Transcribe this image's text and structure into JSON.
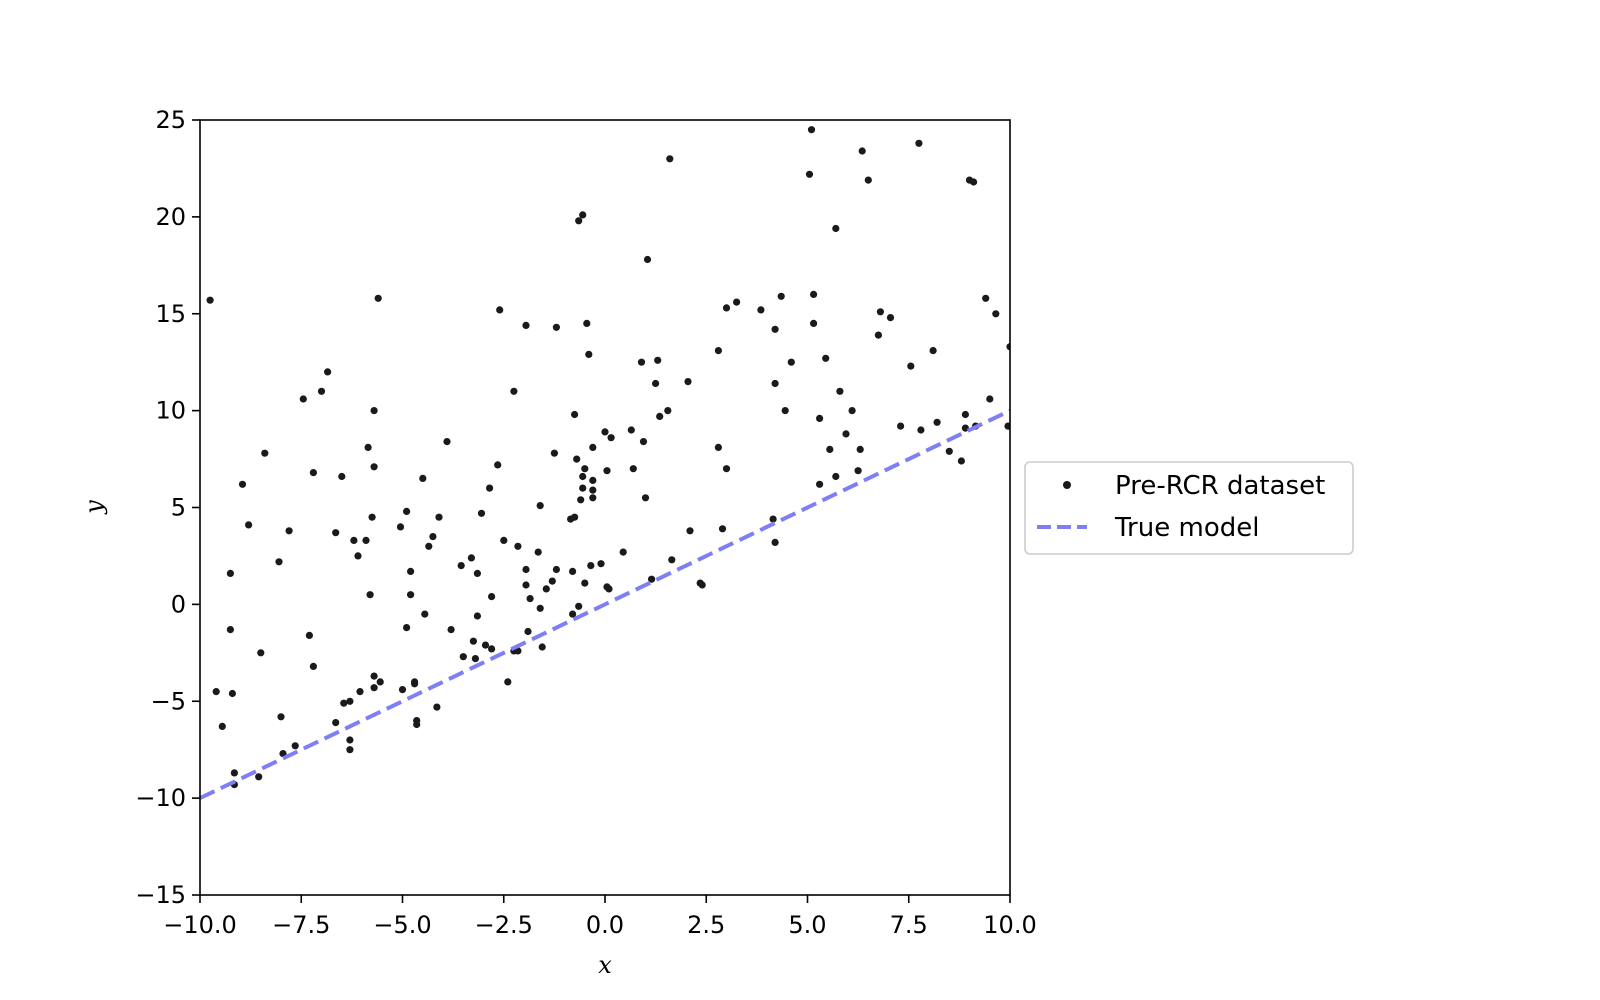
{
  "chart_data": {
    "type": "scatter",
    "xlabel": "x",
    "ylabel": "y",
    "xlim": [
      -10.0,
      10.0
    ],
    "ylim": [
      -15,
      25
    ],
    "xticks": [
      "−10.0",
      "−7.5",
      "−5.0",
      "−2.5",
      "0.0",
      "2.5",
      "5.0",
      "7.5",
      "10.0"
    ],
    "yticks": [
      "−15",
      "−10",
      "−5",
      "0",
      "5",
      "10",
      "15",
      "20",
      "25"
    ],
    "grid": false,
    "legend_placement": "outside-right",
    "colors": {
      "points": "#1a1a1a",
      "model_line": "#7f7ff5"
    },
    "series": [
      {
        "name": "Pre-RCR dataset",
        "kind": "scatter",
        "points": [
          [
            -9.75,
            15.7
          ],
          [
            -9.6,
            -4.5
          ],
          [
            -9.45,
            -6.3
          ],
          [
            -9.25,
            1.6
          ],
          [
            -9.25,
            -1.3
          ],
          [
            -9.2,
            -4.6
          ],
          [
            -9.15,
            -8.7
          ],
          [
            -9.15,
            -9.3
          ],
          [
            -8.95,
            6.2
          ],
          [
            -8.8,
            4.1
          ],
          [
            -8.55,
            -8.9
          ],
          [
            -8.5,
            -2.5
          ],
          [
            -8.4,
            7.8
          ],
          [
            -8.05,
            2.2
          ],
          [
            -8.0,
            -5.8
          ],
          [
            -7.95,
            -7.7
          ],
          [
            -7.8,
            3.8
          ],
          [
            -7.65,
            -7.3
          ],
          [
            -7.45,
            10.6
          ],
          [
            -7.3,
            -1.6
          ],
          [
            -7.2,
            6.8
          ],
          [
            -7.2,
            -3.2
          ],
          [
            -7.0,
            11.0
          ],
          [
            -6.85,
            12.0
          ],
          [
            -6.65,
            3.7
          ],
          [
            -6.5,
            6.6
          ],
          [
            -6.45,
            -5.1
          ],
          [
            -6.65,
            -6.1
          ],
          [
            -6.3,
            -5.0
          ],
          [
            -6.3,
            -7.0
          ],
          [
            -6.3,
            -7.5
          ],
          [
            -6.2,
            3.3
          ],
          [
            -6.1,
            2.5
          ],
          [
            -6.05,
            -4.5
          ],
          [
            -5.9,
            3.3
          ],
          [
            -5.85,
            8.1
          ],
          [
            -5.8,
            0.5
          ],
          [
            -5.75,
            4.5
          ],
          [
            -5.7,
            10.0
          ],
          [
            -5.7,
            7.1
          ],
          [
            -5.7,
            -3.7
          ],
          [
            -5.7,
            -4.3
          ],
          [
            -5.6,
            15.8
          ],
          [
            -5.55,
            -4.0
          ],
          [
            -5.05,
            4.0
          ],
          [
            -5.0,
            -4.4
          ],
          [
            -4.9,
            -1.2
          ],
          [
            -4.9,
            4.8
          ],
          [
            -4.8,
            1.7
          ],
          [
            -4.8,
            0.5
          ],
          [
            -4.7,
            -4.1
          ],
          [
            -4.7,
            -4.0
          ],
          [
            -4.65,
            -6.0
          ],
          [
            -4.65,
            -6.2
          ],
          [
            -4.5,
            6.5
          ],
          [
            -4.45,
            -0.5
          ],
          [
            -4.35,
            3.0
          ],
          [
            -4.25,
            3.5
          ],
          [
            -4.15,
            -5.3
          ],
          [
            -4.1,
            4.5
          ],
          [
            -3.9,
            8.4
          ],
          [
            -3.8,
            -1.3
          ],
          [
            -3.55,
            2.0
          ],
          [
            -3.5,
            -2.7
          ],
          [
            -3.3,
            2.4
          ],
          [
            -3.25,
            -1.9
          ],
          [
            -3.2,
            -2.8
          ],
          [
            -3.15,
            1.6
          ],
          [
            -3.15,
            -0.6
          ],
          [
            -3.05,
            4.7
          ],
          [
            -2.95,
            -2.1
          ],
          [
            -2.85,
            6.0
          ],
          [
            -2.8,
            0.4
          ],
          [
            -2.8,
            -2.3
          ],
          [
            -2.65,
            7.2
          ],
          [
            -2.6,
            15.2
          ],
          [
            -2.5,
            3.3
          ],
          [
            -2.4,
            -4.0
          ],
          [
            -2.25,
            11.0
          ],
          [
            -2.25,
            -2.4
          ],
          [
            -2.15,
            3.0
          ],
          [
            -2.15,
            -2.4
          ],
          [
            -1.95,
            14.4
          ],
          [
            -1.95,
            1.8
          ],
          [
            -1.95,
            1.0
          ],
          [
            -1.9,
            -1.4
          ],
          [
            -1.85,
            0.3
          ],
          [
            -1.65,
            2.7
          ],
          [
            -1.6,
            5.1
          ],
          [
            -1.6,
            -0.2
          ],
          [
            -1.55,
            -2.2
          ],
          [
            -1.45,
            0.8
          ],
          [
            -1.3,
            1.2
          ],
          [
            -1.25,
            7.8
          ],
          [
            -1.2,
            14.3
          ],
          [
            -1.2,
            1.8
          ],
          [
            -0.85,
            4.4
          ],
          [
            -0.75,
            9.8
          ],
          [
            -0.75,
            4.5
          ],
          [
            -0.8,
            -0.5
          ],
          [
            -0.7,
            7.5
          ],
          [
            -0.6,
            5.4
          ],
          [
            -0.65,
            -0.1
          ],
          [
            -0.5,
            1.1
          ],
          [
            -0.5,
            7.0
          ],
          [
            -0.45,
            14.5
          ],
          [
            -0.4,
            12.9
          ],
          [
            -0.3,
            8.1
          ],
          [
            -0.8,
            1.7
          ],
          [
            -0.65,
            19.8
          ],
          [
            -0.55,
            20.1
          ],
          [
            -0.55,
            6.6
          ],
          [
            -0.55,
            6.0
          ],
          [
            -0.35,
            2.0
          ],
          [
            -0.3,
            6.4
          ],
          [
            -0.3,
            5.9
          ],
          [
            -0.3,
            5.5
          ],
          [
            -0.1,
            2.1
          ],
          [
            0.0,
            8.9
          ],
          [
            0.05,
            6.9
          ],
          [
            0.05,
            0.9
          ],
          [
            0.1,
            0.8
          ],
          [
            0.15,
            8.6
          ],
          [
            0.45,
            2.7
          ],
          [
            0.65,
            9.0
          ],
          [
            0.7,
            7.0
          ],
          [
            0.9,
            12.5
          ],
          [
            0.95,
            8.4
          ],
          [
            1.0,
            5.5
          ],
          [
            1.05,
            17.8
          ],
          [
            1.15,
            1.3
          ],
          [
            1.25,
            11.4
          ],
          [
            1.3,
            12.6
          ],
          [
            1.35,
            9.7
          ],
          [
            1.55,
            10.0
          ],
          [
            1.6,
            23.0
          ],
          [
            1.65,
            2.3
          ],
          [
            2.05,
            11.5
          ],
          [
            2.1,
            3.8
          ],
          [
            2.35,
            1.1
          ],
          [
            2.4,
            1.0
          ],
          [
            2.8,
            13.1
          ],
          [
            2.8,
            8.1
          ],
          [
            2.9,
            3.9
          ],
          [
            3.0,
            15.3
          ],
          [
            3.0,
            7.0
          ],
          [
            3.25,
            15.6
          ],
          [
            3.85,
            15.2
          ],
          [
            4.15,
            4.4
          ],
          [
            4.2,
            14.2
          ],
          [
            4.2,
            11.4
          ],
          [
            4.2,
            3.2
          ],
          [
            4.35,
            15.9
          ],
          [
            4.45,
            10.0
          ],
          [
            4.6,
            12.5
          ],
          [
            5.05,
            22.2
          ],
          [
            5.1,
            24.5
          ],
          [
            5.15,
            16.0
          ],
          [
            5.15,
            14.5
          ],
          [
            5.3,
            9.6
          ],
          [
            5.3,
            6.2
          ],
          [
            5.45,
            12.7
          ],
          [
            5.55,
            8.0
          ],
          [
            5.7,
            19.4
          ],
          [
            5.7,
            6.6
          ],
          [
            5.8,
            11.0
          ],
          [
            5.95,
            8.8
          ],
          [
            6.1,
            10.0
          ],
          [
            6.25,
            6.9
          ],
          [
            6.3,
            8.0
          ],
          [
            6.35,
            23.4
          ],
          [
            6.5,
            21.9
          ],
          [
            6.75,
            13.9
          ],
          [
            6.8,
            15.1
          ],
          [
            7.05,
            14.8
          ],
          [
            7.3,
            9.2
          ],
          [
            7.55,
            12.3
          ],
          [
            7.75,
            23.8
          ],
          [
            7.8,
            9.0
          ],
          [
            8.1,
            13.1
          ],
          [
            8.2,
            9.4
          ],
          [
            8.5,
            7.9
          ],
          [
            8.8,
            7.4
          ],
          [
            8.9,
            9.8
          ],
          [
            8.9,
            9.1
          ],
          [
            9.0,
            21.9
          ],
          [
            9.1,
            21.8
          ],
          [
            9.15,
            9.2
          ],
          [
            9.4,
            15.8
          ],
          [
            9.5,
            10.6
          ],
          [
            9.65,
            15.0
          ],
          [
            9.95,
            9.2
          ],
          [
            10.0,
            13.3
          ]
        ]
      },
      {
        "name": "True model",
        "kind": "line",
        "style": "dashed",
        "points": [
          [
            -10.0,
            -10.0
          ],
          [
            10.0,
            10.0
          ]
        ]
      }
    ]
  }
}
